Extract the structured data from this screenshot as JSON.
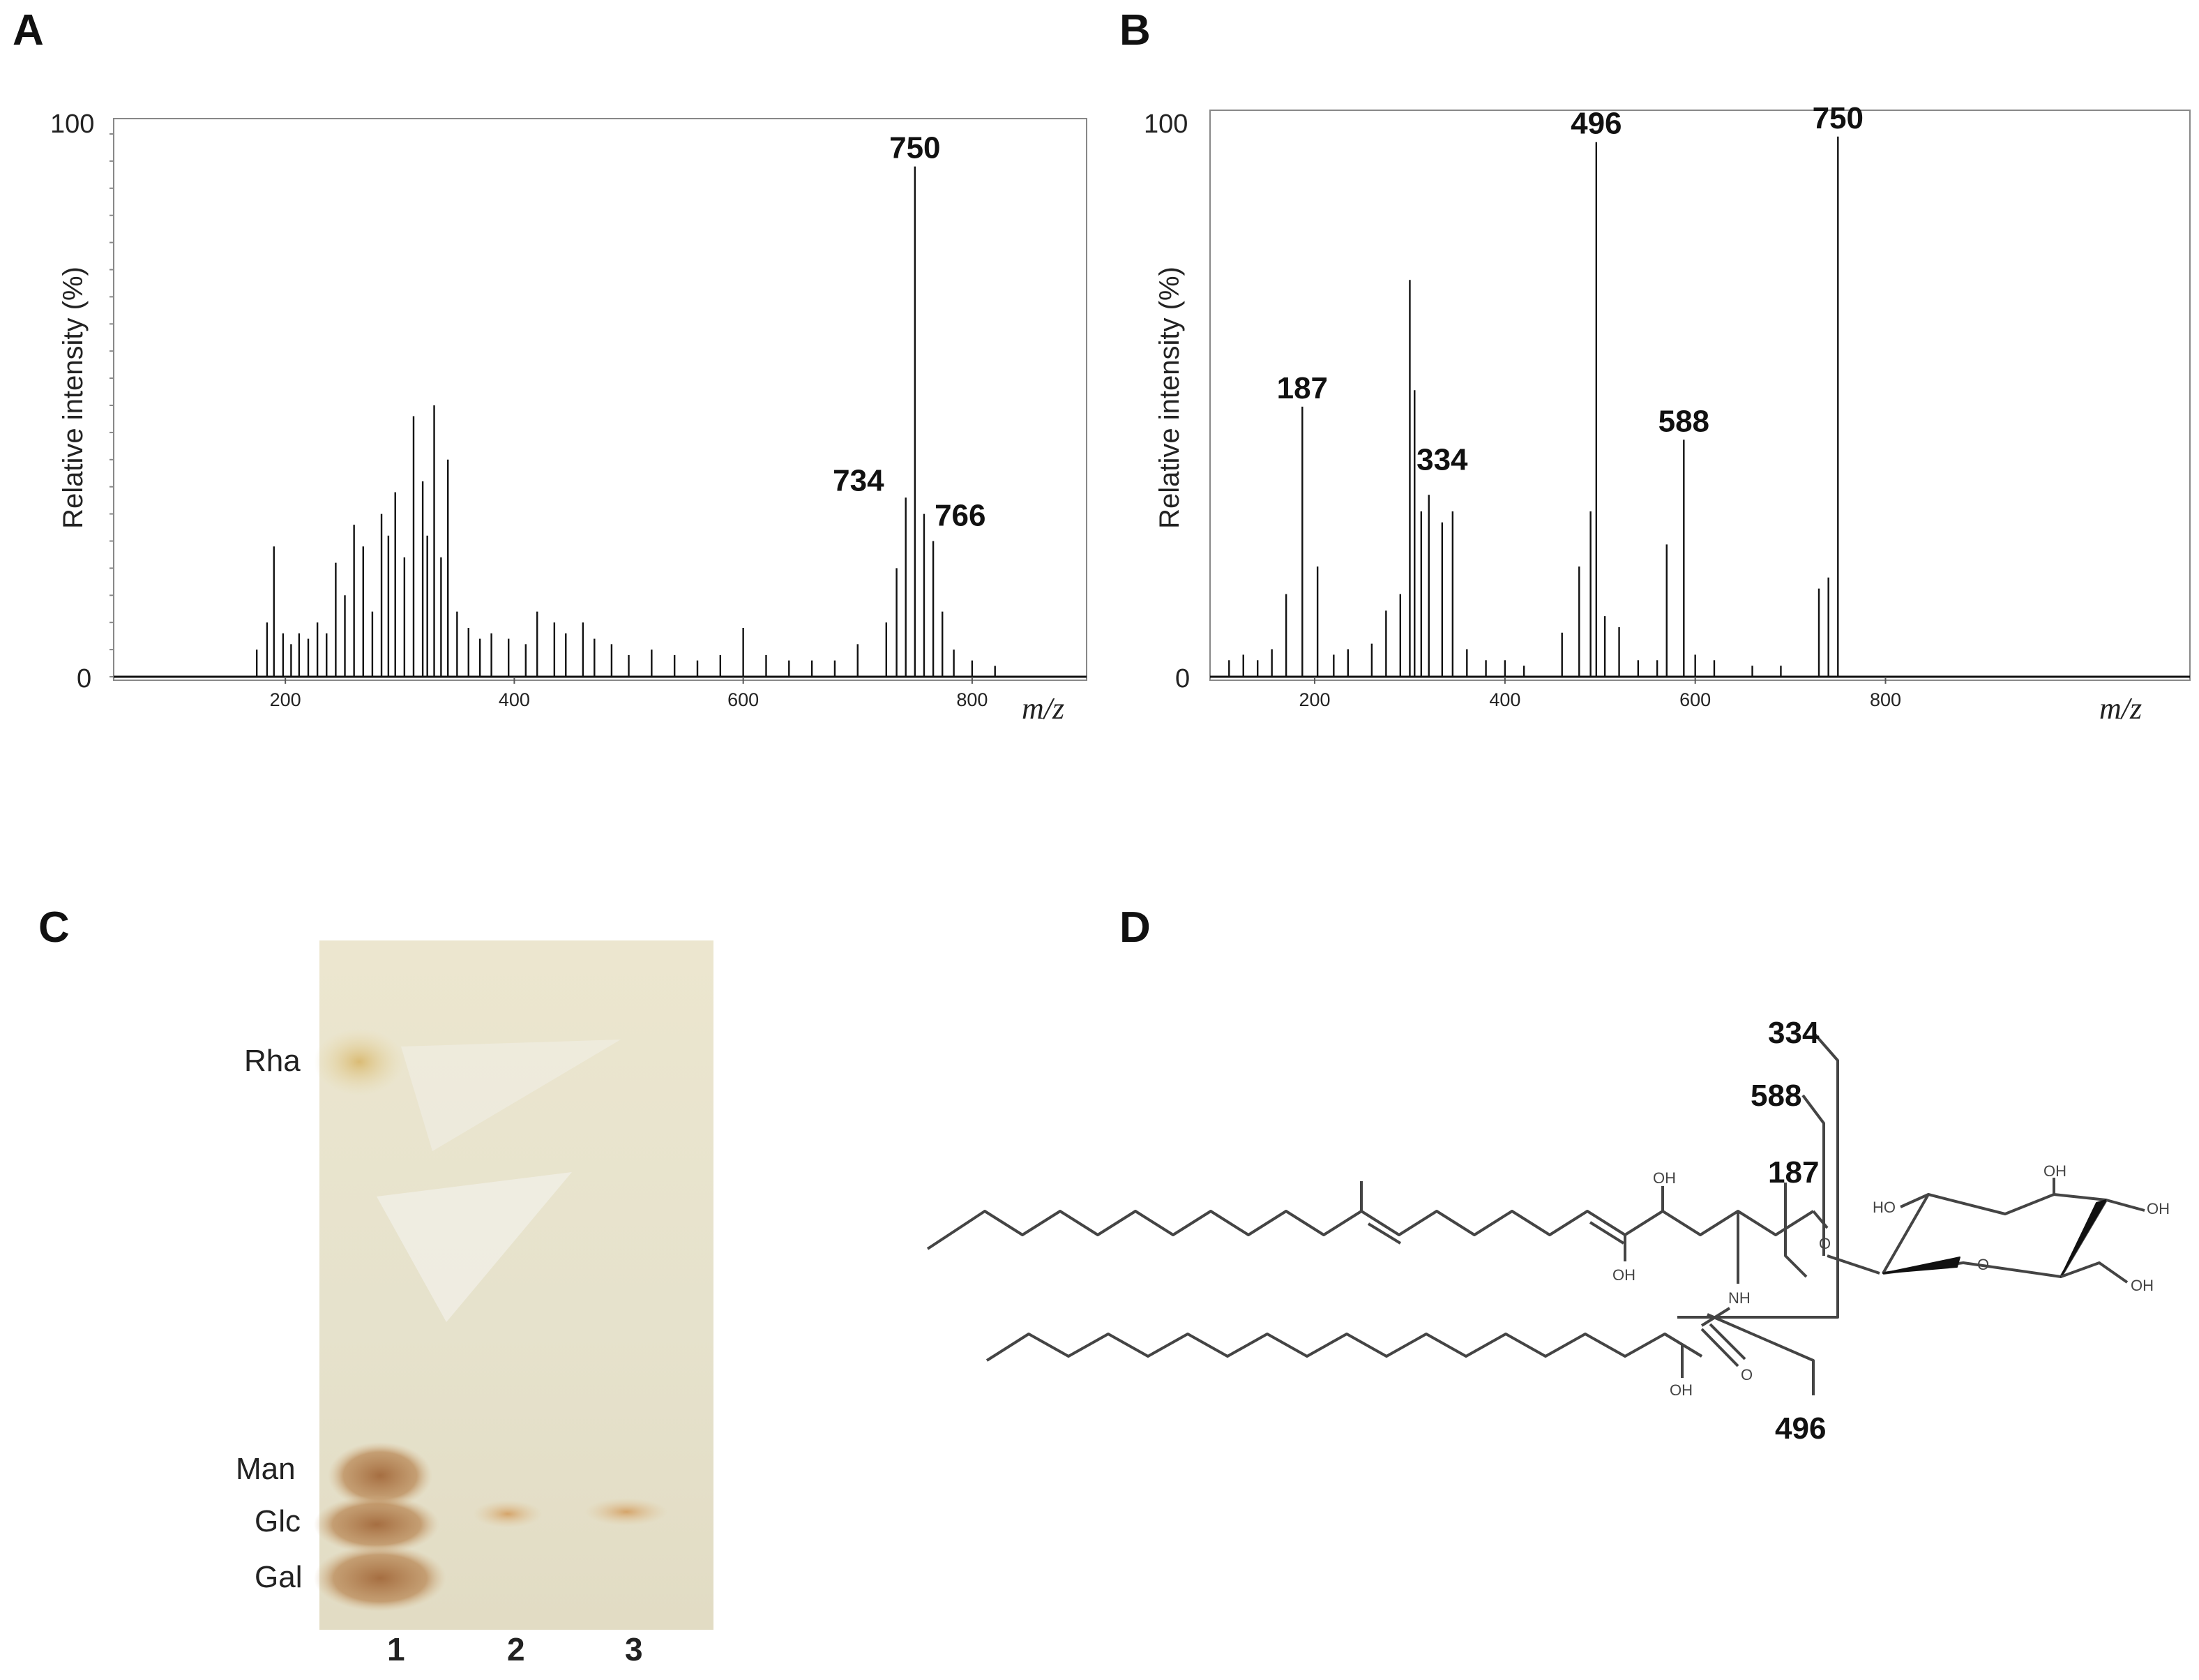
{
  "panels": {
    "A": "A",
    "B": "B",
    "C": "C",
    "D": "D"
  },
  "chart_data": [
    {
      "type": "bar",
      "panel": "A",
      "title": "",
      "xlabel": "m/z",
      "ylabel": "Relative intensity (%)",
      "xlim": [
        50,
        900
      ],
      "ylim": [
        0,
        100
      ],
      "xticks": [
        "200",
        "400",
        "600",
        "800"
      ],
      "yticks": [
        "100",
        "0"
      ],
      "x": [
        175,
        184,
        190,
        198,
        205,
        212,
        220,
        228,
        236,
        244,
        252,
        260,
        268,
        276,
        284,
        290,
        296,
        304,
        312,
        320,
        324,
        330,
        336,
        342,
        350,
        360,
        370,
        380,
        395,
        410,
        420,
        435,
        445,
        460,
        470,
        485,
        500,
        520,
        540,
        560,
        580,
        600,
        620,
        640,
        660,
        680,
        700,
        725,
        734,
        742,
        750,
        758,
        766,
        774,
        784,
        800,
        820
      ],
      "y": [
        5,
        10,
        24,
        8,
        6,
        8,
        7,
        10,
        8,
        21,
        15,
        28,
        24,
        12,
        30,
        26,
        34,
        22,
        48,
        36,
        26,
        50,
        22,
        40,
        12,
        9,
        7,
        8,
        7,
        6,
        12,
        10,
        8,
        10,
        7,
        6,
        4,
        5,
        4,
        3,
        4,
        9,
        4,
        3,
        3,
        3,
        6,
        10,
        20,
        33,
        94,
        30,
        25,
        12,
        5,
        3,
        2
      ],
      "peak_labels": [
        {
          "x": 750,
          "y": 94,
          "label": "750"
        },
        {
          "x": 734,
          "y": 20,
          "label": "734"
        },
        {
          "x": 766,
          "y": 25,
          "label": "766"
        }
      ]
    },
    {
      "type": "bar",
      "panel": "B",
      "title": "",
      "xlabel": "m/z",
      "ylabel": "Relative intensity (%)",
      "xlim": [
        90,
        1120
      ],
      "ylim": [
        0,
        100
      ],
      "xticks": [
        "200",
        "400",
        "600",
        "800"
      ],
      "yticks": [
        "100",
        "0"
      ],
      "x": [
        110,
        125,
        140,
        155,
        170,
        187,
        203,
        220,
        235,
        260,
        275,
        290,
        300,
        305,
        312,
        320,
        334,
        345,
        360,
        380,
        400,
        420,
        460,
        478,
        490,
        496,
        505,
        520,
        540,
        560,
        570,
        588,
        600,
        620,
        660,
        690,
        730,
        740,
        750
      ],
      "y": [
        3,
        4,
        3,
        5,
        15,
        49,
        20,
        4,
        5,
        6,
        12,
        15,
        72,
        52,
        30,
        33,
        28,
        30,
        5,
        3,
        3,
        2,
        8,
        20,
        30,
        97,
        11,
        9,
        3,
        3,
        24,
        43,
        4,
        3,
        2,
        2,
        16,
        18,
        98
      ],
      "peak_labels": [
        {
          "x": 187,
          "y": 49,
          "label": "187"
        },
        {
          "x": 334,
          "y": 33,
          "label": "334"
        },
        {
          "x": 496,
          "y": 97,
          "label": "496"
        },
        {
          "x": 588,
          "y": 43,
          "label": "588"
        },
        {
          "x": 750,
          "y": 98,
          "label": "750"
        }
      ]
    }
  ],
  "tlc": {
    "spot_labels": [
      "Rha",
      "Man",
      "Glc",
      "Gal"
    ],
    "lanes": [
      "1",
      "2",
      "3"
    ]
  },
  "structure": {
    "atoms": {
      "oh_top": "OH",
      "oh_enol": "OH",
      "nh": "NH",
      "o_ether": "O",
      "o_carbonyl": "O",
      "oh_amide": "OH",
      "ho_ring_left": "HO",
      "oh_ring_top": "OH",
      "oh_ring_right": "OH",
      "o_ring": "O",
      "oh_ring_ch2": "OH"
    },
    "fragments": [
      "334",
      "588",
      "187",
      "496"
    ]
  }
}
